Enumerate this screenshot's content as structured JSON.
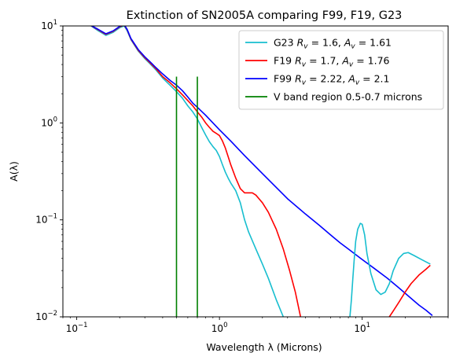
{
  "chart_data": {
    "type": "line",
    "title": "Extinction of SN2005A comparing F99, F19, G23",
    "xlabel": "Wavelength λ (Microns)",
    "ylabel": "A(λ)",
    "xscale": "log",
    "yscale": "log",
    "xlim": [
      0.08,
      40
    ],
    "ylim": [
      0.01,
      10
    ],
    "x_ticks": [
      {
        "value": 0.1,
        "base": "10",
        "exp": "−1"
      },
      {
        "value": 1,
        "base": "10",
        "exp": "0"
      },
      {
        "value": 10,
        "base": "10",
        "exp": "1"
      }
    ],
    "y_ticks": [
      {
        "value": 0.01,
        "base": "10",
        "exp": "−2"
      },
      {
        "value": 0.1,
        "base": "10",
        "exp": "−1"
      },
      {
        "value": 1,
        "base": "10",
        "exp": "0"
      },
      {
        "value": 10,
        "base": "10",
        "exp": "1"
      }
    ],
    "legend_position": "top-right",
    "series": [
      {
        "name": "G23 Rv = 1.6, Av = 1.61",
        "legend": {
          "model": "G23",
          "rv": "1.6",
          "av": "1.61"
        },
        "color": "#17becf",
        "points": [
          [
            0.12,
            10.5
          ],
          [
            0.14,
            9.0
          ],
          [
            0.16,
            8.0
          ],
          [
            0.18,
            8.6
          ],
          [
            0.2,
            9.6
          ],
          [
            0.215,
            10.0
          ],
          [
            0.225,
            9.0
          ],
          [
            0.24,
            7.2
          ],
          [
            0.27,
            5.5
          ],
          [
            0.3,
            4.6
          ],
          [
            0.33,
            4.0
          ],
          [
            0.36,
            3.5
          ],
          [
            0.4,
            2.9
          ],
          [
            0.45,
            2.45
          ],
          [
            0.5,
            2.1
          ],
          [
            0.55,
            1.8
          ],
          [
            0.6,
            1.5
          ],
          [
            0.65,
            1.3
          ],
          [
            0.7,
            1.1
          ],
          [
            0.75,
            0.9
          ],
          [
            0.8,
            0.75
          ],
          [
            0.85,
            0.64
          ],
          [
            0.9,
            0.57
          ],
          [
            0.95,
            0.52
          ],
          [
            1.0,
            0.45
          ],
          [
            1.05,
            0.37
          ],
          [
            1.1,
            0.31
          ],
          [
            1.15,
            0.27
          ],
          [
            1.2,
            0.24
          ],
          [
            1.3,
            0.2
          ],
          [
            1.4,
            0.15
          ],
          [
            1.5,
            0.1
          ],
          [
            1.6,
            0.075
          ],
          [
            1.8,
            0.05
          ],
          [
            2.0,
            0.035
          ],
          [
            2.2,
            0.025
          ],
          [
            2.5,
            0.015
          ],
          [
            2.8,
            0.01
          ]
        ]
      },
      {
        "name": "F19 Rv = 1.7, Av = 1.76",
        "legend": {
          "model": "F19",
          "rv": "1.7",
          "av": "1.76"
        },
        "color": "#ff0000",
        "points": [
          [
            0.12,
            10.5
          ],
          [
            0.14,
            9.2
          ],
          [
            0.16,
            8.2
          ],
          [
            0.18,
            8.8
          ],
          [
            0.2,
            9.8
          ],
          [
            0.215,
            10.2
          ],
          [
            0.225,
            9.2
          ],
          [
            0.24,
            7.3
          ],
          [
            0.27,
            5.6
          ],
          [
            0.3,
            4.7
          ],
          [
            0.33,
            4.1
          ],
          [
            0.36,
            3.6
          ],
          [
            0.4,
            3.0
          ],
          [
            0.45,
            2.6
          ],
          [
            0.5,
            2.25
          ],
          [
            0.55,
            1.95
          ],
          [
            0.6,
            1.7
          ],
          [
            0.65,
            1.5
          ],
          [
            0.7,
            1.3
          ],
          [
            0.75,
            1.15
          ],
          [
            0.8,
            1.0
          ],
          [
            0.85,
            0.9
          ],
          [
            0.9,
            0.82
          ],
          [
            0.95,
            0.78
          ],
          [
            1.0,
            0.74
          ],
          [
            1.05,
            0.65
          ],
          [
            1.1,
            0.55
          ],
          [
            1.15,
            0.45
          ],
          [
            1.2,
            0.37
          ],
          [
            1.3,
            0.27
          ],
          [
            1.4,
            0.21
          ],
          [
            1.5,
            0.19
          ],
          [
            1.6,
            0.19
          ],
          [
            1.7,
            0.19
          ],
          [
            1.8,
            0.18
          ],
          [
            2.0,
            0.15
          ],
          [
            2.2,
            0.12
          ],
          [
            2.5,
            0.08
          ],
          [
            2.8,
            0.05
          ],
          [
            3.1,
            0.03
          ],
          [
            3.4,
            0.018
          ],
          [
            3.7,
            0.01
          ]
        ]
      },
      {
        "name": "F99 Rv = 2.22, Av = 2.1",
        "legend": {
          "model": "F99",
          "rv": "2.22",
          "av": "2.1"
        },
        "color": "#0000ff",
        "points": [
          [
            0.12,
            10.5
          ],
          [
            0.14,
            9.3
          ],
          [
            0.16,
            8.3
          ],
          [
            0.18,
            8.9
          ],
          [
            0.2,
            9.9
          ],
          [
            0.215,
            10.3
          ],
          [
            0.225,
            9.3
          ],
          [
            0.24,
            7.4
          ],
          [
            0.27,
            5.7
          ],
          [
            0.3,
            4.8
          ],
          [
            0.33,
            4.2
          ],
          [
            0.36,
            3.7
          ],
          [
            0.4,
            3.2
          ],
          [
            0.45,
            2.75
          ],
          [
            0.5,
            2.45
          ],
          [
            0.55,
            2.15
          ],
          [
            0.6,
            1.85
          ],
          [
            0.65,
            1.6
          ],
          [
            0.7,
            1.45
          ],
          [
            0.8,
            1.2
          ],
          [
            1.0,
            0.85
          ],
          [
            1.2,
            0.65
          ],
          [
            1.5,
            0.46
          ],
          [
            2.0,
            0.3
          ],
          [
            3.0,
            0.165
          ],
          [
            4.0,
            0.115
          ],
          [
            5.0,
            0.088
          ],
          [
            6.0,
            0.07
          ],
          [
            7.0,
            0.058
          ],
          [
            8.0,
            0.05
          ],
          [
            10.0,
            0.039
          ],
          [
            12.0,
            0.032
          ],
          [
            15.0,
            0.025
          ],
          [
            18.0,
            0.02
          ],
          [
            22.0,
            0.0155
          ],
          [
            25.0,
            0.0132
          ],
          [
            28.0,
            0.0117
          ],
          [
            31.0,
            0.0103
          ]
        ]
      },
      {
        "name": "G23 Rv = 1.6, Av = 1.61",
        "legend": null,
        "color": "#17becf",
        "points": [
          [
            8.2,
            0.01
          ],
          [
            8.4,
            0.015
          ],
          [
            8.6,
            0.025
          ],
          [
            8.8,
            0.04
          ],
          [
            9.0,
            0.06
          ],
          [
            9.3,
            0.08
          ],
          [
            9.7,
            0.092
          ],
          [
            10.0,
            0.09
          ],
          [
            10.4,
            0.07
          ],
          [
            10.8,
            0.045
          ],
          [
            11.5,
            0.028
          ],
          [
            12.5,
            0.019
          ],
          [
            13.5,
            0.017
          ],
          [
            14.5,
            0.018
          ],
          [
            15.5,
            0.022
          ],
          [
            16.5,
            0.03
          ],
          [
            18.0,
            0.04
          ],
          [
            19.5,
            0.045
          ],
          [
            21.0,
            0.046
          ],
          [
            23.0,
            0.043
          ],
          [
            26.0,
            0.039
          ],
          [
            30.0,
            0.035
          ]
        ]
      },
      {
        "name": "F19 Rv = 1.7, Av = 1.76",
        "legend": null,
        "color": "#ff0000",
        "points": [
          [
            15.5,
            0.01
          ],
          [
            16.5,
            0.0115
          ],
          [
            18.0,
            0.014
          ],
          [
            20.0,
            0.018
          ],
          [
            22.0,
            0.022
          ],
          [
            25.0,
            0.027
          ],
          [
            28.0,
            0.031
          ],
          [
            30.0,
            0.034
          ]
        ]
      },
      {
        "name": "V band region 0.5-0.7 microns",
        "legend": {
          "text": "V band region 0.5-0.7 microns"
        },
        "color": "#008000",
        "vlines": [
          {
            "x": 0.5,
            "ymin": 0.01,
            "ymax": 3.0
          },
          {
            "x": 0.7,
            "ymin": 0.01,
            "ymax": 3.0
          }
        ]
      }
    ]
  }
}
